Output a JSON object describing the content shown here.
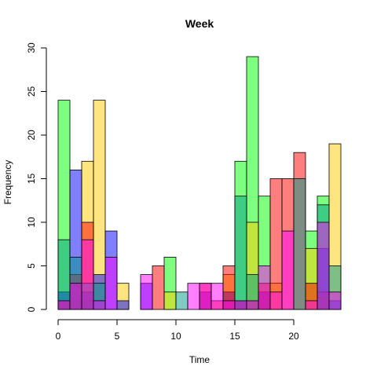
{
  "chart_data": {
    "type": "bar",
    "subtype": "overlaid-histogram",
    "title": "Week",
    "xlabel": "Time",
    "ylabel": "Frequency",
    "xlim": [
      0,
      24
    ],
    "ylim": [
      0,
      30
    ],
    "x_ticks": [
      0,
      5,
      10,
      15,
      20
    ],
    "y_ticks": [
      0,
      5,
      10,
      15,
      20,
      25,
      30
    ],
    "bin_width": 1,
    "grid": false,
    "legend": "none",
    "series": [
      {
        "color": "#00FF0080",
        "values": [
          24,
          1,
          1,
          0,
          0,
          0,
          0,
          0,
          0,
          6,
          0,
          0,
          0,
          0,
          0,
          17,
          29,
          13,
          0,
          0,
          0,
          9,
          13,
          0
        ]
      },
      {
        "color": "#FFCC0080",
        "values": [
          1,
          3,
          17,
          24,
          0,
          3,
          0,
          0,
          0,
          2,
          0,
          0,
          0,
          0,
          4,
          0,
          10,
          0,
          3,
          0,
          0,
          7,
          0,
          19
        ]
      },
      {
        "color": "#0000FF80",
        "values": [
          2,
          16,
          2,
          4,
          9,
          1,
          0,
          3,
          0,
          0,
          0,
          0,
          2,
          0,
          2,
          1,
          0,
          2,
          0,
          0,
          0,
          0,
          7,
          1
        ]
      },
      {
        "color": "#FF000080",
        "values": [
          1,
          4,
          10,
          0,
          0,
          0,
          0,
          0,
          5,
          0,
          0,
          0,
          3,
          1,
          5,
          1,
          1,
          3,
          15,
          15,
          18,
          3,
          2,
          0
        ]
      },
      {
        "color": "#00998880",
        "values": [
          8,
          6,
          3,
          3,
          0,
          0,
          0,
          0,
          0,
          0,
          2,
          0,
          0,
          0,
          0,
          13,
          4,
          0,
          0,
          0,
          15,
          0,
          12,
          5
        ]
      },
      {
        "color": "#FF00FF80",
        "values": [
          1,
          3,
          8,
          1,
          6,
          0,
          0,
          4,
          0,
          0,
          0,
          3,
          3,
          3,
          1,
          1,
          1,
          5,
          2,
          9,
          0,
          1,
          10,
          2
        ]
      }
    ]
  }
}
